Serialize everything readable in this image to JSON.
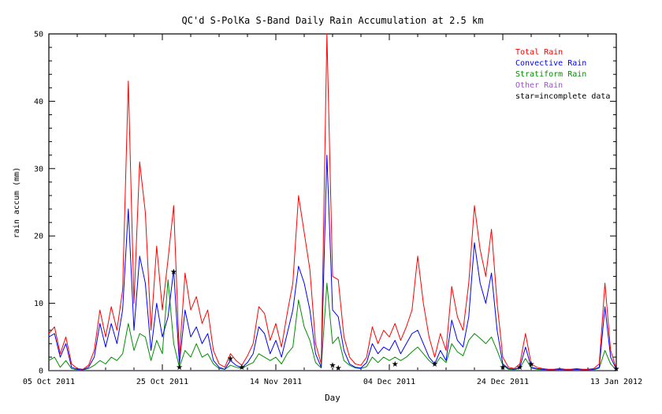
{
  "figure": {
    "title": "QC'd S-PolKa S-Band Daily Rain Accumulation at 2.5 km",
    "xlabel": "Day",
    "ylabel": "rain accum (mm)"
  },
  "legend": [
    {
      "label": "Total Rain",
      "color": "#ff0000"
    },
    {
      "label": "Convective Rain",
      "color": "#0000ff"
    },
    {
      "label": "Stratiform Rain",
      "color": "#008f00"
    },
    {
      "label": "Other Rain",
      "color": "#9955cc"
    },
    {
      "label": "star=incomplete data",
      "color": "#000000"
    }
  ],
  "chart_data": {
    "type": "line",
    "title": "QC'd S-PolKa S-Band Daily Rain Accumulation at 2.5 km",
    "xlabel": "Day",
    "ylabel": "rain accum (mm)",
    "xlim": [
      0,
      100
    ],
    "ylim": [
      0,
      50
    ],
    "x_start": 0,
    "x_step": 1,
    "x_minor_step": 5,
    "y_minor_step": 2,
    "grid": false,
    "legend_position": "top-right-inside",
    "x_ticks": [
      {
        "pos": 0,
        "label": "05 Oct 2011"
      },
      {
        "pos": 20,
        "label": "25 Oct 2011"
      },
      {
        "pos": 40,
        "label": "14 Nov 2011"
      },
      {
        "pos": 60,
        "label": "04 Dec 2011"
      },
      {
        "pos": 80,
        "label": "24 Dec 2011"
      },
      {
        "pos": 100,
        "label": "13 Jan 2012"
      }
    ],
    "y_ticks": [
      0,
      10,
      20,
      30,
      40,
      50
    ],
    "series": [
      {
        "id": "other-rain",
        "name": "Other Rain",
        "color": "#9955cc",
        "values": [
          0.05,
          0.05,
          0.05,
          0.05,
          0.05,
          0.05,
          0.05,
          0.05,
          0.05,
          0.05,
          0.05,
          0.05,
          0.05,
          0.05,
          0.05,
          0.05,
          0.05,
          0.05,
          0.05,
          0.05,
          0.05,
          0.05,
          0.05,
          0.05,
          0.05,
          0.05,
          0.05,
          0.05,
          0.05,
          0.05,
          0.05,
          0.05,
          0.05,
          0.05,
          0.05,
          0.05,
          0.05,
          0.05,
          0.05,
          0.05,
          0.05,
          0.05,
          0.05,
          0.05,
          0.05,
          0.05,
          0.05,
          0.05,
          0.05,
          0.05,
          0.05,
          0.05,
          0.05,
          0.05,
          0.05,
          0.05,
          0.05,
          0.05,
          0.05,
          0.05,
          0.05,
          0.05,
          0.05,
          0.05,
          0.05,
          0.05,
          0.05,
          0.05,
          0.05,
          0.05,
          0.05,
          0.05,
          0.05,
          0.05,
          0.05,
          0.05,
          0.05,
          0.05,
          0.05,
          0.05,
          0.05,
          0.05,
          0.05,
          0.05,
          0.05,
          0.05,
          0.05,
          0.05,
          0.05,
          0.05,
          0.05,
          0.05,
          0.05,
          0.05,
          0.05,
          0.05,
          0.05,
          0.05,
          0.05,
          0.05,
          0.05
        ]
      },
      {
        "id": "stratiform-rain",
        "name": "Stratiform Rain",
        "color": "#008f00",
        "values": [
          1.5,
          2.0,
          0.5,
          1.5,
          0.3,
          0.1,
          0.1,
          0.3,
          0.8,
          1.5,
          1.0,
          2.0,
          1.5,
          2.5,
          7.0,
          3.0,
          5.5,
          5.0,
          1.5,
          4.5,
          2.5,
          13.5,
          4.0,
          0.5,
          3.0,
          2.0,
          4.0,
          2.0,
          2.5,
          1.0,
          0.3,
          0.2,
          0.8,
          0.5,
          0.3,
          0.8,
          1.2,
          2.5,
          2.0,
          1.5,
          2.0,
          1.0,
          2.5,
          3.5,
          10.5,
          6.5,
          4.5,
          1.2,
          0.4,
          13.0,
          4.0,
          5.0,
          1.5,
          0.8,
          0.4,
          0.3,
          0.6,
          2.0,
          1.2,
          2.0,
          1.5,
          2.0,
          1.5,
          2.0,
          2.8,
          3.5,
          2.5,
          1.5,
          0.8,
          2.0,
          1.2,
          4.0,
          2.8,
          2.2,
          4.5,
          5.5,
          4.8,
          4.0,
          5.0,
          3.0,
          0.8,
          0.2,
          0.1,
          0.4,
          1.8,
          0.4,
          0.2,
          0.1,
          0.1,
          0.1,
          0.1,
          0.1,
          0.1,
          0.1,
          0.1,
          0.1,
          0.1,
          0.4,
          3.0,
          1.0,
          0.1
        ]
      },
      {
        "id": "convective-rain",
        "name": "Convective Rain",
        "color": "#0000ff",
        "values": [
          5.0,
          5.5,
          2.0,
          4.0,
          0.5,
          0.2,
          0.1,
          0.5,
          2.0,
          7.0,
          3.5,
          7.0,
          4.0,
          9.0,
          24.0,
          6.0,
          17.0,
          13.0,
          3.0,
          10.0,
          5.0,
          8.0,
          15.0,
          1.0,
          9.0,
          5.0,
          6.5,
          4.0,
          5.5,
          1.5,
          0.5,
          0.2,
          1.5,
          0.8,
          0.4,
          1.2,
          2.5,
          6.5,
          5.5,
          2.5,
          4.5,
          2.0,
          5.5,
          9.0,
          15.5,
          13.0,
          9.0,
          2.5,
          0.5,
          32.0,
          9.0,
          8.0,
          3.0,
          1.0,
          0.5,
          0.4,
          1.2,
          4.0,
          2.5,
          3.5,
          3.0,
          4.5,
          2.5,
          4.0,
          5.5,
          6.0,
          4.0,
          2.0,
          1.0,
          3.0,
          1.5,
          7.5,
          4.5,
          3.5,
          8.0,
          19.0,
          13.0,
          10.0,
          14.5,
          6.0,
          1.0,
          0.3,
          0.2,
          0.5,
          3.5,
          0.5,
          0.3,
          0.2,
          0.1,
          0.1,
          0.2,
          0.1,
          0.1,
          0.2,
          0.1,
          0.1,
          0.2,
          0.5,
          9.5,
          2.0,
          0.2
        ]
      },
      {
        "id": "total-rain",
        "name": "Total Rain",
        "color": "#ff0000",
        "values": [
          5.5,
          6.5,
          2.5,
          5.0,
          1.0,
          0.3,
          0.2,
          0.8,
          3.0,
          9.0,
          5.0,
          9.5,
          6.0,
          12.0,
          43.0,
          10.0,
          31.0,
          23.5,
          6.0,
          18.5,
          9.0,
          16.5,
          24.5,
          2.0,
          14.5,
          9.0,
          11.0,
          7.0,
          9.0,
          3.0,
          1.0,
          0.5,
          2.5,
          1.5,
          0.8,
          2.2,
          4.0,
          9.5,
          8.5,
          4.5,
          7.0,
          3.5,
          8.5,
          13.0,
          26.0,
          20.5,
          15.0,
          4.0,
          1.0,
          50.0,
          14.0,
          13.5,
          5.0,
          2.0,
          1.0,
          0.8,
          2.0,
          6.5,
          4.0,
          6.0,
          5.0,
          7.0,
          4.5,
          6.5,
          9.0,
          17.0,
          10.0,
          5.0,
          2.0,
          5.5,
          3.0,
          12.5,
          8.0,
          6.0,
          13.0,
          24.5,
          18.0,
          14.0,
          21.0,
          10.0,
          2.0,
          0.5,
          0.3,
          1.0,
          5.5,
          1.0,
          0.5,
          0.3,
          0.2,
          0.2,
          0.3,
          0.2,
          0.2,
          0.3,
          0.2,
          0.2,
          0.3,
          1.0,
          13.0,
          3.0,
          0.3
        ]
      }
    ],
    "stars_incomplete_data": [
      {
        "x": 22,
        "y": 14.7
      },
      {
        "x": 23,
        "y": 0.5
      },
      {
        "x": 32,
        "y": 1.8
      },
      {
        "x": 34,
        "y": 0.5
      },
      {
        "x": 50,
        "y": 0.8
      },
      {
        "x": 51,
        "y": 0.4
      },
      {
        "x": 61,
        "y": 1.0
      },
      {
        "x": 68,
        "y": 1.0
      },
      {
        "x": 80,
        "y": 0.5
      },
      {
        "x": 83,
        "y": 0.5
      },
      {
        "x": 85,
        "y": 1.0
      },
      {
        "x": 100,
        "y": 0.3
      }
    ]
  }
}
